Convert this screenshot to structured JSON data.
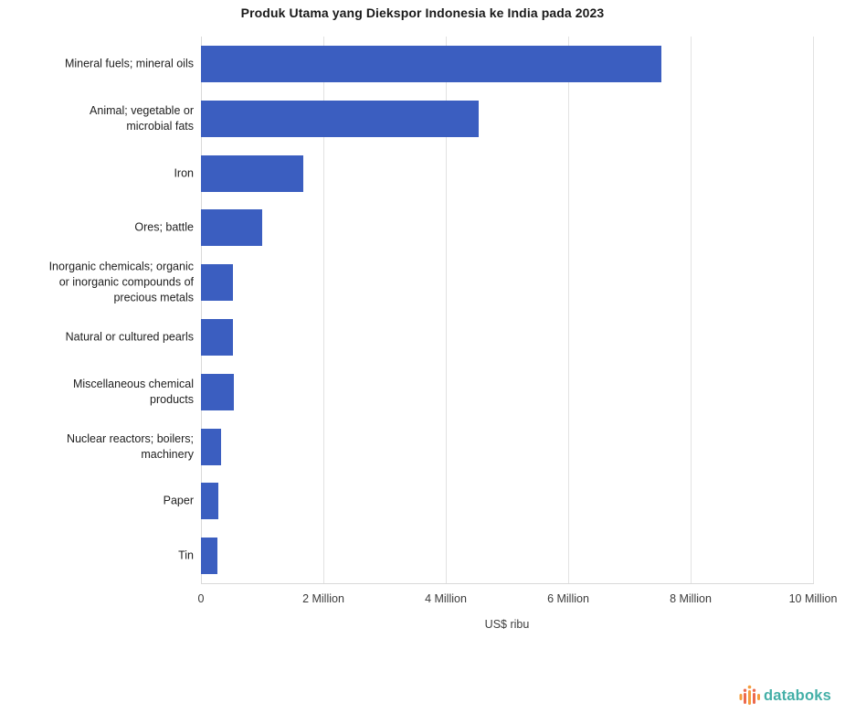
{
  "page": {
    "title": "Produk Utama yang Diekspor Indonesia ke India pada 2023"
  },
  "chart_data": {
    "type": "bar",
    "orientation": "horizontal",
    "title": "Produk Utama yang Diekspor Indonesia ke India pada 2023",
    "categories": [
      "Mineral fuels; mineral oils",
      "Animal; vegetable or\nmicrobial fats",
      "Iron",
      "Ores; battle",
      "Inorganic chemicals; organic\nor inorganic compounds of\nprecious metals",
      "Natural or cultured pearls",
      "Miscellaneous chemical\nproducts",
      "Nuclear reactors; boilers;\nmachinery",
      "Paper",
      "Tin"
    ],
    "values": [
      7520000,
      4540000,
      1670000,
      1000000,
      515000,
      520000,
      530000,
      325000,
      280000,
      275000
    ],
    "xlabel": "US$ ribu",
    "ylabel": "",
    "xlim": [
      0,
      10000000
    ],
    "xticks": [
      {
        "value": 0,
        "label": "0"
      },
      {
        "value": 2000000,
        "label": "2 Million"
      },
      {
        "value": 4000000,
        "label": "4 Million"
      },
      {
        "value": 6000000,
        "label": "6 Million"
      },
      {
        "value": 8000000,
        "label": "8 Million"
      },
      {
        "value": 10000000,
        "label": "10 Million"
      }
    ],
    "grid": true,
    "legend": false,
    "bar_color": "#3B5EC0",
    "gridline_color": "#e2e2e2"
  },
  "logo": {
    "text": "databoks",
    "text_color": "#43AFA7",
    "icon_orange": "#F59C3C",
    "icon_coral": "#ED6A4D"
  }
}
